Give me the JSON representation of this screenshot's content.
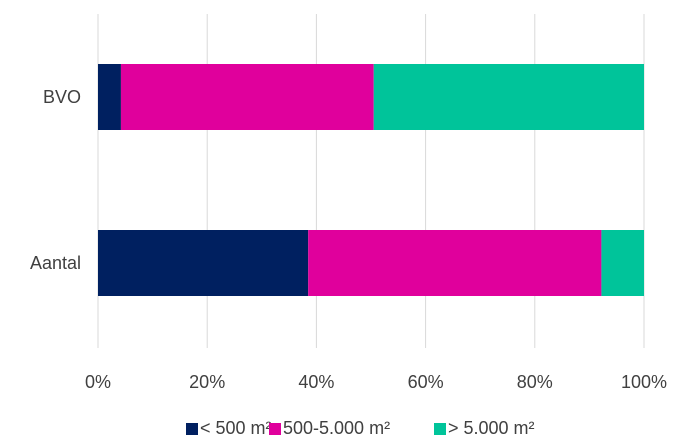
{
  "chart_data": {
    "type": "bar",
    "orientation": "horizontal",
    "stacked": "percent",
    "categories": [
      "BVO",
      "Aantal"
    ],
    "series": [
      {
        "name": "< 500 m²",
        "color": "#002060",
        "values": [
          4.2,
          38.5
        ]
      },
      {
        "name": "500-5.000 m²",
        "color": "#E0009C",
        "values": [
          46.3,
          53.7
        ]
      },
      {
        "name": "> 5.000 m²",
        "color": "#00C49A",
        "values": [
          49.5,
          7.8
        ]
      }
    ],
    "xlim": [
      0,
      100
    ],
    "xticks": [
      "0%",
      "20%",
      "40%",
      "60%",
      "80%",
      "100%"
    ],
    "grid": "vertical",
    "legend": "bottom"
  }
}
